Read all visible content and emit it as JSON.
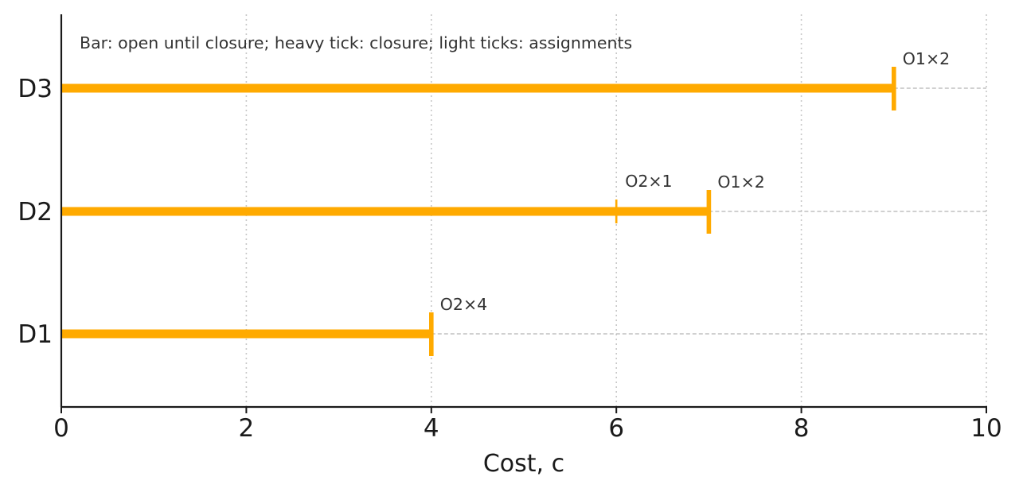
{
  "chart_data": {
    "type": "bar",
    "orientation": "horizontal",
    "annotation": "Bar: open until closure; heavy tick: closure; light ticks: assignments",
    "xlabel": "Cost, c",
    "ylabel": "",
    "xlim": [
      0,
      10
    ],
    "xticks": [
      "0",
      "2",
      "4",
      "6",
      "8",
      "10"
    ],
    "grid": "vertical dotted",
    "colors": {
      "bar": "#FFAA00",
      "axis": "#1a1a1a",
      "grid": "#c8c8c8",
      "guide": "#c0c0c0"
    },
    "categories": [
      "D1",
      "D2",
      "D3"
    ],
    "values": [
      4,
      7,
      9
    ],
    "closures": [
      {
        "category": "D1",
        "x": 4,
        "label": "O2×4"
      },
      {
        "category": "D2",
        "x": 7,
        "label": "O1×2"
      },
      {
        "category": "D3",
        "x": 9,
        "label": "O1×2"
      }
    ],
    "assignments": [
      {
        "category": "D2",
        "x": 6,
        "label": "O2×1"
      }
    ]
  }
}
